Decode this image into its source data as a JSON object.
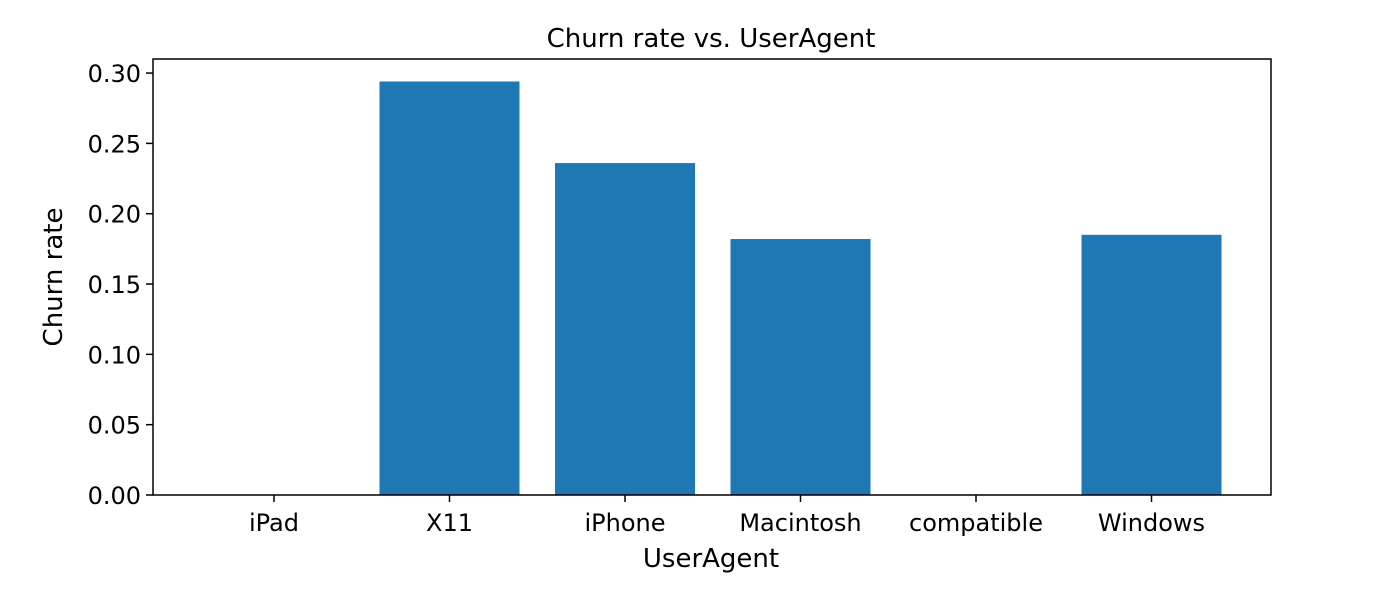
{
  "chart_data": {
    "type": "bar",
    "title": "Churn rate vs. UserAgent",
    "xlabel": "UserAgent",
    "ylabel": "Churn rate",
    "categories": [
      "iPad",
      "X11",
      "iPhone",
      "Macintosh",
      "compatible",
      "Windows"
    ],
    "values": [
      0.0,
      0.294,
      0.236,
      0.182,
      0.0,
      0.185
    ],
    "ylim": [
      0,
      0.31
    ],
    "yticks": [
      0.0,
      0.05,
      0.1,
      0.15,
      0.2,
      0.25,
      0.3
    ],
    "ytick_labels": [
      "0.00",
      "0.05",
      "0.10",
      "0.15",
      "0.20",
      "0.25",
      "0.30"
    ],
    "bar_color": "#1f77b4",
    "grid": false,
    "legend": "none"
  }
}
